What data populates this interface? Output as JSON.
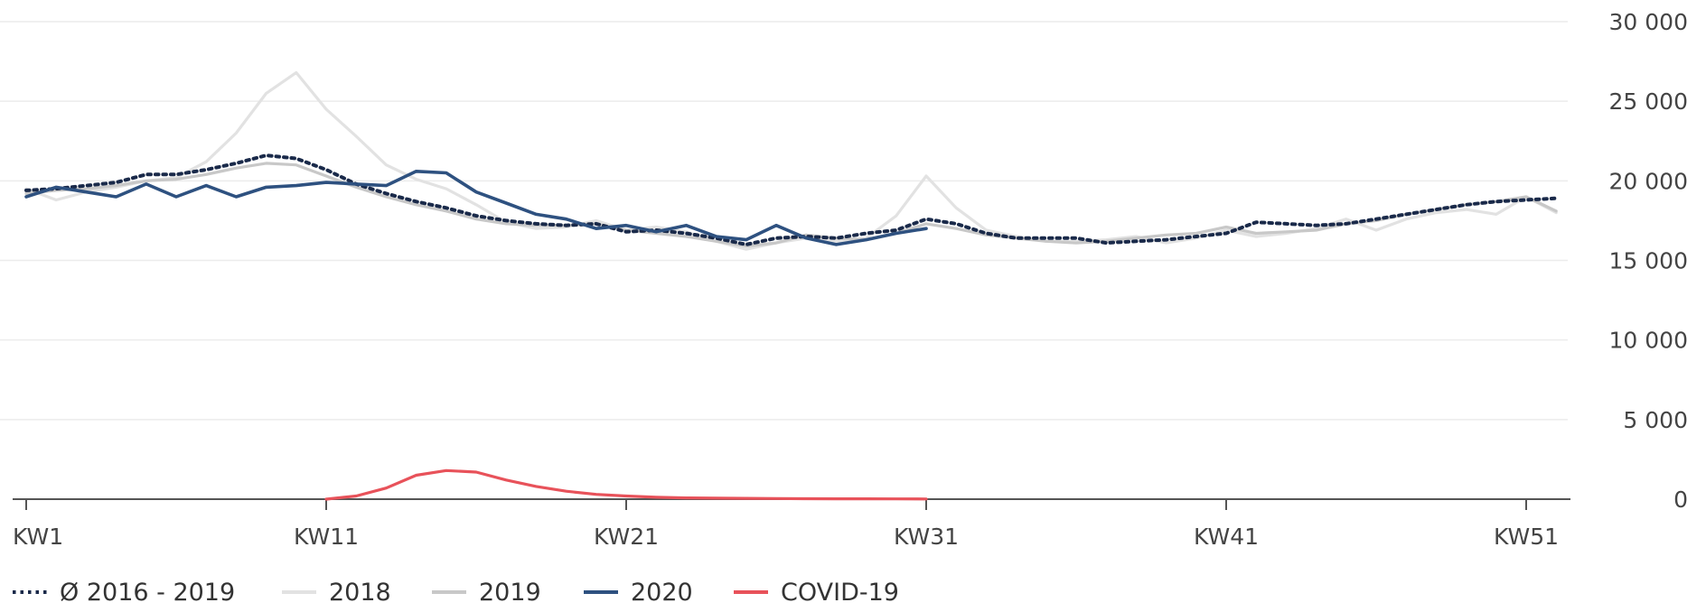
{
  "chart_data": {
    "type": "line",
    "title": "",
    "xlabel": "",
    "ylabel": "",
    "ylim": [
      0,
      30000
    ],
    "xlim": [
      1,
      53
    ],
    "y_ticks": [
      0,
      5000,
      10000,
      15000,
      20000,
      25000,
      30000
    ],
    "y_tick_labels": [
      "0",
      "5 000",
      "10 000",
      "15 000",
      "20 000",
      "25 000",
      "30 000"
    ],
    "x_ticks": [
      1,
      11,
      21,
      31,
      41,
      51
    ],
    "x_tick_labels": [
      "KW1",
      "KW11",
      "KW21",
      "KW31",
      "KW41",
      "KW51"
    ],
    "y_axis_position": "right",
    "grid": "horizontal",
    "legend_position": "bottom-left",
    "series": [
      {
        "name": "2018",
        "key": "s2018",
        "color": "#e2e2e2",
        "dash": "solid",
        "x": [
          1,
          2,
          3,
          4,
          5,
          6,
          7,
          8,
          9,
          10,
          11,
          12,
          13,
          14,
          15,
          16,
          17,
          18,
          19,
          20,
          21,
          22,
          23,
          24,
          25,
          26,
          27,
          28,
          29,
          30,
          31,
          32,
          33,
          34,
          35,
          36,
          37,
          38,
          39,
          40,
          41,
          42,
          43,
          44,
          45,
          46,
          47,
          48,
          49,
          50,
          51,
          52
        ],
        "values": [
          19500,
          18800,
          19300,
          19600,
          20000,
          20200,
          21200,
          23000,
          25500,
          26800,
          24500,
          22800,
          21000,
          20100,
          19500,
          18500,
          17400,
          17000,
          17100,
          17500,
          16900,
          17100,
          16800,
          16200,
          15700,
          16100,
          16400,
          16200,
          16400,
          17800,
          20300,
          18300,
          16900,
          16500,
          16200,
          16200,
          16300,
          16500,
          16100,
          16400,
          16900,
          16500,
          16700,
          17000,
          17600,
          16900,
          17600,
          18000,
          18200,
          17900,
          19000,
          18000
        ]
      },
      {
        "name": "2019",
        "key": "s2019",
        "color": "#c8c8c8",
        "dash": "solid",
        "x": [
          1,
          2,
          3,
          4,
          5,
          6,
          7,
          8,
          9,
          10,
          11,
          12,
          13,
          14,
          15,
          16,
          17,
          18,
          19,
          20,
          21,
          22,
          23,
          24,
          25,
          26,
          27,
          28,
          29,
          30,
          31,
          32,
          33,
          34,
          35,
          36,
          37,
          38,
          39,
          40,
          41,
          42,
          43,
          44,
          45,
          46,
          47,
          48,
          49,
          50,
          51,
          52
        ],
        "values": [
          19200,
          19400,
          19500,
          19700,
          20000,
          20100,
          20400,
          20800,
          21100,
          21000,
          20300,
          19600,
          19000,
          18500,
          18100,
          17600,
          17300,
          17200,
          17200,
          17300,
          16900,
          16700,
          16500,
          16200,
          15900,
          16100,
          16600,
          16400,
          16300,
          16700,
          17300,
          17000,
          16600,
          16400,
          16200,
          16100,
          16200,
          16400,
          16600,
          16700,
          17100,
          16700,
          16800,
          16900,
          17300,
          17500,
          17900,
          18200,
          18500,
          18700,
          19000,
          18100
        ]
      },
      {
        "name": "Ø 2016 - 2019",
        "key": "avg",
        "color": "#1a2a4a",
        "dash": "dotted",
        "x": [
          1,
          2,
          3,
          4,
          5,
          6,
          7,
          8,
          9,
          10,
          11,
          12,
          13,
          14,
          15,
          16,
          17,
          18,
          19,
          20,
          21,
          22,
          23,
          24,
          25,
          26,
          27,
          28,
          29,
          30,
          31,
          32,
          33,
          34,
          35,
          36,
          37,
          38,
          39,
          40,
          41,
          42,
          43,
          44,
          45,
          46,
          47,
          48,
          49,
          50,
          51,
          52
        ],
        "values": [
          19400,
          19500,
          19700,
          19900,
          20400,
          20400,
          20700,
          21100,
          21600,
          21400,
          20700,
          19800,
          19200,
          18700,
          18300,
          17800,
          17500,
          17300,
          17200,
          17300,
          16800,
          16900,
          16700,
          16400,
          16000,
          16400,
          16500,
          16400,
          16700,
          16900,
          17600,
          17300,
          16700,
          16400,
          16400,
          16400,
          16100,
          16200,
          16300,
          16500,
          16700,
          17400,
          17300,
          17200,
          17300,
          17600,
          17900,
          18200,
          18500,
          18700,
          18800,
          18900
        ]
      },
      {
        "name": "2020",
        "key": "s2020",
        "color": "#2e5180",
        "dash": "solid",
        "x": [
          1,
          2,
          3,
          4,
          5,
          6,
          7,
          8,
          9,
          10,
          11,
          12,
          13,
          14,
          15,
          16,
          17,
          18,
          19,
          20,
          21,
          22,
          23,
          24,
          25,
          26,
          27,
          28,
          29,
          30,
          31
        ],
        "values": [
          19000,
          19600,
          19300,
          19000,
          19800,
          19000,
          19700,
          19000,
          19600,
          19700,
          19900,
          19800,
          19700,
          20600,
          20500,
          19300,
          18600,
          17900,
          17600,
          17000,
          17200,
          16800,
          17200,
          16500,
          16300,
          17200,
          16400,
          16000,
          16300,
          16700,
          17000
        ]
      },
      {
        "name": "COVID-19",
        "key": "covid",
        "color": "#e8525a",
        "dash": "solid",
        "x": [
          11,
          12,
          13,
          14,
          15,
          16,
          17,
          18,
          19,
          20,
          21,
          22,
          23,
          24,
          25,
          26,
          27,
          28,
          29,
          30,
          31
        ],
        "values": [
          0,
          200,
          700,
          1500,
          1800,
          1700,
          1200,
          800,
          500,
          300,
          200,
          120,
          80,
          60,
          50,
          40,
          30,
          25,
          20,
          15,
          10
        ]
      }
    ]
  },
  "legend": {
    "items": [
      {
        "label": "Ø 2016 - 2019",
        "key": "avg",
        "color": "#1a2a4a",
        "dash": "dotted",
        "text_color": "#333333"
      },
      {
        "label": "2018",
        "key": "s2018",
        "color": "#e2e2e2",
        "dash": "solid",
        "text_color": "#333333"
      },
      {
        "label": "2019",
        "key": "s2019",
        "color": "#c8c8c8",
        "dash": "solid",
        "text_color": "#c8c8c8"
      },
      {
        "label": "2020",
        "key": "s2020",
        "color": "#2e5180",
        "dash": "solid",
        "text_color": "#333333"
      },
      {
        "label": "COVID-19",
        "key": "covid",
        "color": "#e8525a",
        "dash": "solid",
        "text_color": "#333333"
      }
    ]
  }
}
